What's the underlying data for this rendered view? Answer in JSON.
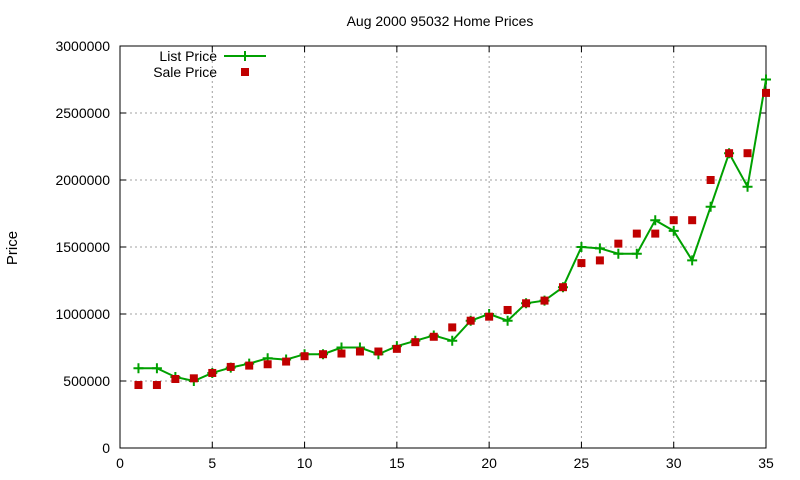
{
  "chart_data": {
    "type": "line",
    "title": "Aug 2000 95032 Home Prices",
    "xlabel": "",
    "ylabel": "Price",
    "xlim": [
      0,
      35
    ],
    "ylim": [
      0,
      3000000
    ],
    "xticks": [
      0,
      5,
      10,
      15,
      20,
      25,
      30,
      35
    ],
    "yticks": [
      0,
      500000,
      1000000,
      1500000,
      2000000,
      2500000,
      3000000
    ],
    "grid": true,
    "legend_position": "top-left",
    "series": [
      {
        "name": "List Price",
        "style": "line-points",
        "color": "#00a000",
        "x": [
          1,
          2,
          3,
          4,
          5,
          6,
          7,
          8,
          9,
          10,
          11,
          12,
          13,
          14,
          15,
          16,
          17,
          18,
          19,
          20,
          21,
          22,
          23,
          24,
          25,
          26,
          27,
          28,
          29,
          30,
          31,
          32,
          33,
          34,
          35
        ],
        "values": [
          595000,
          595000,
          530000,
          500000,
          560000,
          600000,
          630000,
          670000,
          660000,
          700000,
          700000,
          750000,
          750000,
          700000,
          760000,
          800000,
          840000,
          800000,
          950000,
          1000000,
          950000,
          1080000,
          1100000,
          1200000,
          1500000,
          1490000,
          1450000,
          1450000,
          1700000,
          1620000,
          1400000,
          1800000,
          2200000,
          1950000,
          2750000
        ]
      },
      {
        "name": "Sale Price",
        "style": "points",
        "color": "#c00000",
        "x": [
          1,
          2,
          3,
          4,
          5,
          6,
          7,
          8,
          9,
          10,
          11,
          12,
          13,
          14,
          15,
          16,
          17,
          18,
          19,
          20,
          21,
          22,
          23,
          24,
          25,
          26,
          27,
          28,
          29,
          30,
          31,
          32,
          33,
          34,
          35
        ],
        "values": [
          470000,
          470000,
          515000,
          520000,
          560000,
          605000,
          615000,
          625000,
          645000,
          685000,
          700000,
          705000,
          720000,
          720000,
          740000,
          790000,
          830000,
          900000,
          950000,
          980000,
          1030000,
          1080000,
          1100000,
          1200000,
          1380000,
          1400000,
          1525000,
          1600000,
          1600000,
          1700000,
          1700000,
          2000000,
          2200000,
          2200000,
          2650000
        ]
      }
    ]
  }
}
